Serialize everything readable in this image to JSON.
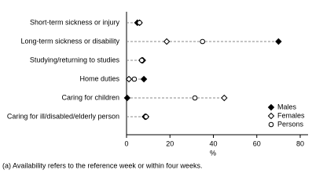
{
  "chart_data": {
    "type": "dot",
    "categories": [
      "Short-term sickness or injury",
      "Long-term sickness or disability",
      "Studying/returning to studies",
      "Home duties",
      "Caring for children",
      "Caring for ill/disabled/elderly person"
    ],
    "series": [
      {
        "name": "Males",
        "color": "#000000",
        "marker": "diamond",
        "filled": true,
        "values": [
          5,
          70,
          7.5,
          8,
          0.3,
          8.5
        ]
      },
      {
        "name": "Females",
        "color": "#000000",
        "marker": "diamond",
        "filled": false,
        "values": [
          6,
          18.5,
          7,
          1.1,
          45,
          9
        ]
      },
      {
        "name": "Persons",
        "color": "#000000",
        "marker": "circle",
        "filled": false,
        "values": [
          6,
          35,
          7,
          3.6,
          31.5,
          9
        ]
      }
    ],
    "xlim": [
      0,
      80
    ],
    "xticks": [
      0,
      20,
      40,
      60,
      80
    ],
    "xlabel": "%",
    "legend": "lower right",
    "footnote": "(a) Availability refers to the reference week or within four weeks."
  }
}
